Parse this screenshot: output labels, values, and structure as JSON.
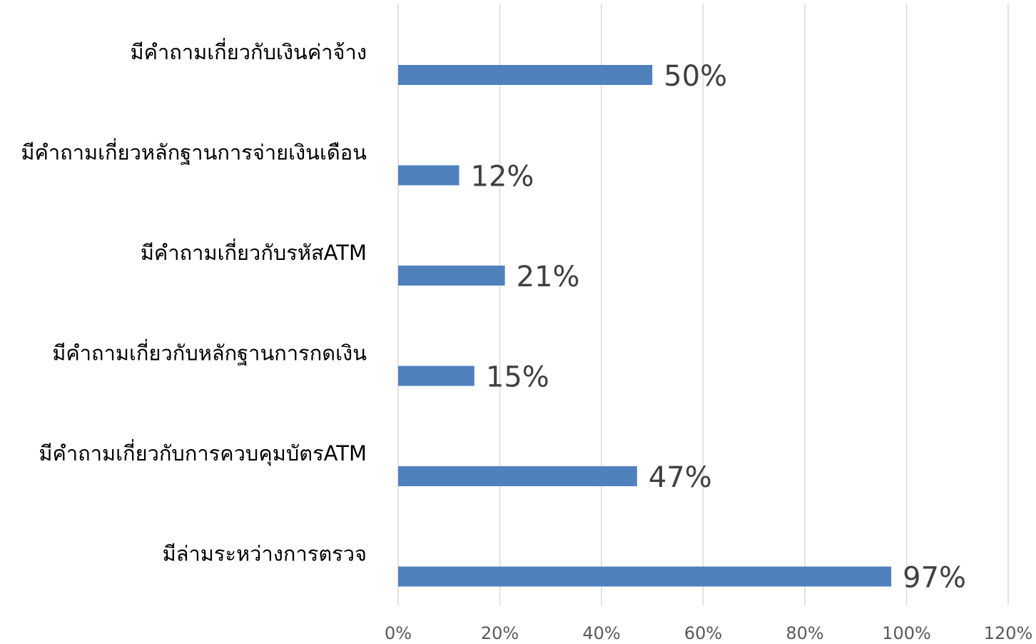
{
  "chart_data": {
    "type": "barh",
    "categories": [
      "มีคำถามเกี่ยวกับเงินค่าจ้าง",
      "มีคำถามเกี่ยวหลักฐานการจ่ายเงินเดือน",
      "มีคำถามเกี่ยวกับรหัสATM",
      "มีคำถามเกี่ยวกับหลักฐานการกดเงิน",
      "มีคำถามเกี่ยวกับการควบคุมบัตรATM",
      "มีล่ามระหว่างการตรวจ"
    ],
    "values": [
      50,
      12,
      21,
      15,
      47,
      97
    ],
    "value_labels": [
      "50%",
      "12%",
      "21%",
      "15%",
      "47%",
      "97%"
    ],
    "color": "#4f81bd",
    "xlim": [
      0,
      120
    ],
    "xticks": [
      {
        "value": 0,
        "label": "0%"
      },
      {
        "value": 20,
        "label": "20%"
      },
      {
        "value": 40,
        "label": "40%"
      },
      {
        "value": 60,
        "label": "60%"
      },
      {
        "value": 80,
        "label": "80%"
      },
      {
        "value": 100,
        "label": "100%"
      },
      {
        "value": 120,
        "label": "120%"
      }
    ],
    "grid": true
  }
}
